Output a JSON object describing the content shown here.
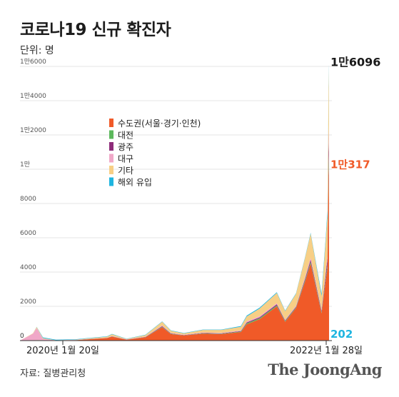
{
  "header": {
    "title": "코로나19 신규 확진자",
    "unit_label": "단위: 명"
  },
  "footer": {
    "source": "자료: 질병관리청",
    "brand": "The JoongAng"
  },
  "colors": {
    "seoul_metro": "#f05a28",
    "daejeon": "#5cb85c",
    "gwangju": "#8e2c7a",
    "daegu": "#f0a8c8",
    "other": "#f7cf86",
    "overseas": "#1fb5e0",
    "total_label": "#1a1a1a",
    "grid": "#e6e6e6"
  },
  "chart_data": {
    "type": "area",
    "stacked": true,
    "ylim": [
      0,
      16000
    ],
    "yticks": [
      {
        "value": 0,
        "label": "0"
      },
      {
        "value": 2000,
        "label": "2000"
      },
      {
        "value": 4000,
        "label": "4000"
      },
      {
        "value": 6000,
        "label": "6000"
      },
      {
        "value": 8000,
        "label": "8000"
      },
      {
        "value": 10000,
        "label": "1만"
      },
      {
        "value": 12000,
        "label": "1만2000"
      },
      {
        "value": 14000,
        "label": "1만4000"
      },
      {
        "value": 16000,
        "label": "1만6000"
      }
    ],
    "x_start_label": "2020년 1월 20일",
    "x_end_label": "2022년 1월 28일",
    "grid": true,
    "legend_position": "upper-left",
    "x": [
      "2020-01-20",
      "2020-02-20",
      "2020-02-29",
      "2020-03-15",
      "2020-04-15",
      "2020-06-01",
      "2020-08-15",
      "2020-08-27",
      "2020-10-01",
      "2020-11-15",
      "2020-12-25",
      "2021-01-15",
      "2021-02-15",
      "2021-04-01",
      "2021-05-15",
      "2021-07-01",
      "2021-07-15",
      "2021-08-15",
      "2021-09-25",
      "2021-10-15",
      "2021-11-10",
      "2021-12-01",
      "2021-12-15",
      "2022-01-01",
      "2022-01-10",
      "2022-01-20",
      "2022-01-24",
      "2022-01-26",
      "2022-01-27",
      "2022-01-28"
    ],
    "series": [
      {
        "name": "수도권(서울·경기·인천)",
        "color_key": "seoul_metro",
        "values": [
          0,
          5,
          25,
          20,
          5,
          25,
          150,
          230,
          50,
          200,
          780,
          380,
          300,
          400,
          380,
          500,
          950,
          1250,
          2000,
          1100,
          1900,
          3400,
          4500,
          2600,
          1600,
          3500,
          4200,
          7500,
          9500,
          10317
        ]
      },
      {
        "name": "대전",
        "color_key": "daejeon",
        "values": [
          0,
          0,
          3,
          3,
          0,
          5,
          5,
          10,
          5,
          10,
          30,
          20,
          10,
          20,
          20,
          30,
          60,
          60,
          60,
          40,
          40,
          80,
          100,
          80,
          60,
          120,
          180,
          300,
          450,
          500
        ]
      },
      {
        "name": "광주",
        "color_key": "gwangju",
        "values": [
          0,
          0,
          5,
          3,
          0,
          5,
          5,
          10,
          5,
          10,
          30,
          20,
          10,
          20,
          20,
          30,
          50,
          50,
          60,
          40,
          40,
          80,
          120,
          100,
          80,
          250,
          400,
          700,
          900,
          1000
        ]
      },
      {
        "name": "대구",
        "color_key": "daegu",
        "values": [
          0,
          400,
          700,
          80,
          10,
          10,
          10,
          20,
          10,
          20,
          40,
          30,
          20,
          30,
          30,
          30,
          50,
          60,
          60,
          40,
          50,
          100,
          120,
          90,
          60,
          130,
          200,
          500,
          700,
          800
        ]
      },
      {
        "name": "기타",
        "color_key": "other",
        "values": [
          0,
          20,
          60,
          40,
          5,
          15,
          60,
          100,
          20,
          80,
          220,
          120,
          80,
          150,
          170,
          220,
          300,
          450,
          600,
          500,
          700,
          1100,
          1400,
          1000,
          800,
          1800,
          2300,
          2800,
          3000,
          3277
        ]
      },
      {
        "name": "해외 유입",
        "color_key": "overseas",
        "values": [
          0,
          5,
          10,
          40,
          30,
          20,
          20,
          20,
          20,
          20,
          20,
          20,
          20,
          20,
          20,
          40,
          50,
          50,
          40,
          30,
          30,
          40,
          50,
          100,
          150,
          200,
          300,
          350,
          300,
          202
        ]
      }
    ],
    "annotations": [
      {
        "text": "1만6096",
        "value": 16096,
        "role": "total"
      },
      {
        "text": "1만317",
        "value": 10317,
        "role": "seoul_metro"
      },
      {
        "text": "202",
        "value": 202,
        "role": "overseas"
      }
    ]
  }
}
